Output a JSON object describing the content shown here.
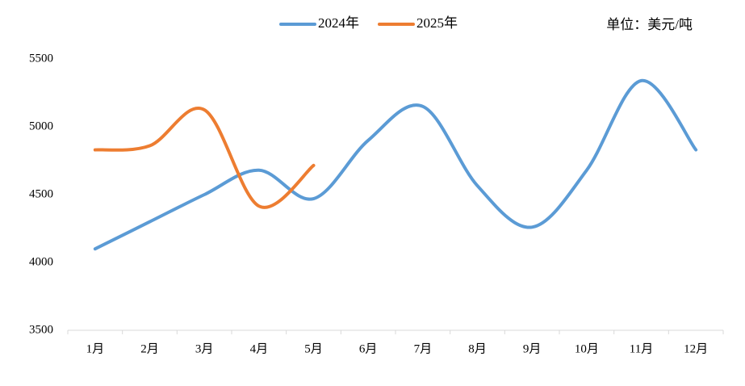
{
  "chart_data": {
    "type": "line",
    "unit_label": "单位：美元/吨",
    "categories": [
      "1月",
      "2月",
      "3月",
      "4月",
      "5月",
      "6月",
      "7月",
      "8月",
      "9月",
      "10月",
      "11月",
      "12月"
    ],
    "series": [
      {
        "name": "2024年",
        "color": "#5b9bd5",
        "values": [
          4100,
          4300,
          4500,
          4680,
          4470,
          4900,
          5150,
          4565,
          4260,
          4680,
          5340,
          4830
        ]
      },
      {
        "name": "2025年",
        "color": "#ed7d31",
        "values": [
          4830,
          4860,
          5125,
          4415,
          4715,
          null,
          null,
          null,
          null,
          null,
          null,
          null
        ]
      }
    ],
    "ylim": [
      3500,
      5500
    ],
    "yticks": [
      3500,
      4000,
      4500,
      5000,
      5500
    ],
    "grid": false,
    "smooth": true,
    "legend": "top"
  }
}
